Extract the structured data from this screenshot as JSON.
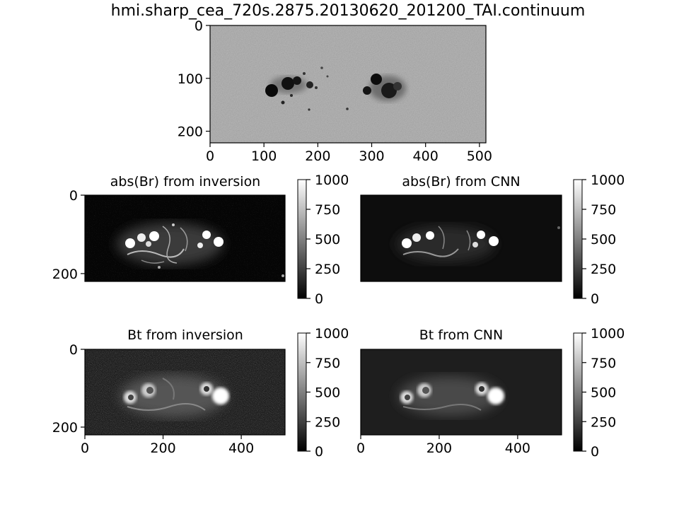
{
  "figure": {
    "title": "hmi.sharp_cea_720s.2875.20130620_201200_TAI.continuum"
  },
  "panel_titles": {
    "br_inversion": "abs(Br) from inversion",
    "br_cnn": "abs(Br) from CNN",
    "bt_inversion": "Bt from inversion",
    "bt_cnn": "Bt from CNN"
  },
  "chart_data": [
    {
      "type": "heatmap",
      "id": "continuum",
      "title": "hmi.sharp_cea_720s.2875.20130620_201200_TAI.continuum",
      "xlim": [
        0,
        512
      ],
      "ylim": [
        222,
        0
      ],
      "xticks": [
        0,
        100,
        200,
        300,
        400,
        500
      ],
      "yticks": [
        0,
        100,
        200
      ],
      "colormap": "gray",
      "colorbar": false
    },
    {
      "type": "heatmap",
      "id": "br_inversion",
      "title": "abs(Br) from inversion",
      "xlim": [
        0,
        512
      ],
      "ylim": [
        220,
        0
      ],
      "xticks": [],
      "yticks": [
        0,
        200
      ],
      "colormap": "gray",
      "clim": [
        0,
        1000
      ],
      "colorbar_ticks": [
        0,
        250,
        500,
        750,
        1000
      ]
    },
    {
      "type": "heatmap",
      "id": "br_cnn",
      "title": "abs(Br) from CNN",
      "xlim": [
        0,
        512
      ],
      "ylim": [
        220,
        0
      ],
      "xticks": [],
      "yticks": [],
      "colormap": "gray",
      "clim": [
        0,
        1000
      ],
      "colorbar_ticks": [
        0,
        250,
        500,
        750,
        1000
      ]
    },
    {
      "type": "heatmap",
      "id": "bt_inversion",
      "title": "Bt from inversion",
      "xlim": [
        0,
        512
      ],
      "ylim": [
        220,
        0
      ],
      "xticks": [
        0,
        200,
        400
      ],
      "yticks": [
        0,
        200
      ],
      "colormap": "gray",
      "clim": [
        0,
        1000
      ],
      "colorbar_ticks": [
        0,
        250,
        500,
        750,
        1000
      ]
    },
    {
      "type": "heatmap",
      "id": "bt_cnn",
      "title": "Bt from CNN",
      "xlim": [
        0,
        512
      ],
      "ylim": [
        220,
        0
      ],
      "xticks": [
        0,
        200,
        400
      ],
      "yticks": [],
      "colormap": "gray",
      "clim": [
        0,
        1000
      ],
      "colorbar_ticks": [
        0,
        250,
        500,
        750,
        1000
      ]
    }
  ]
}
